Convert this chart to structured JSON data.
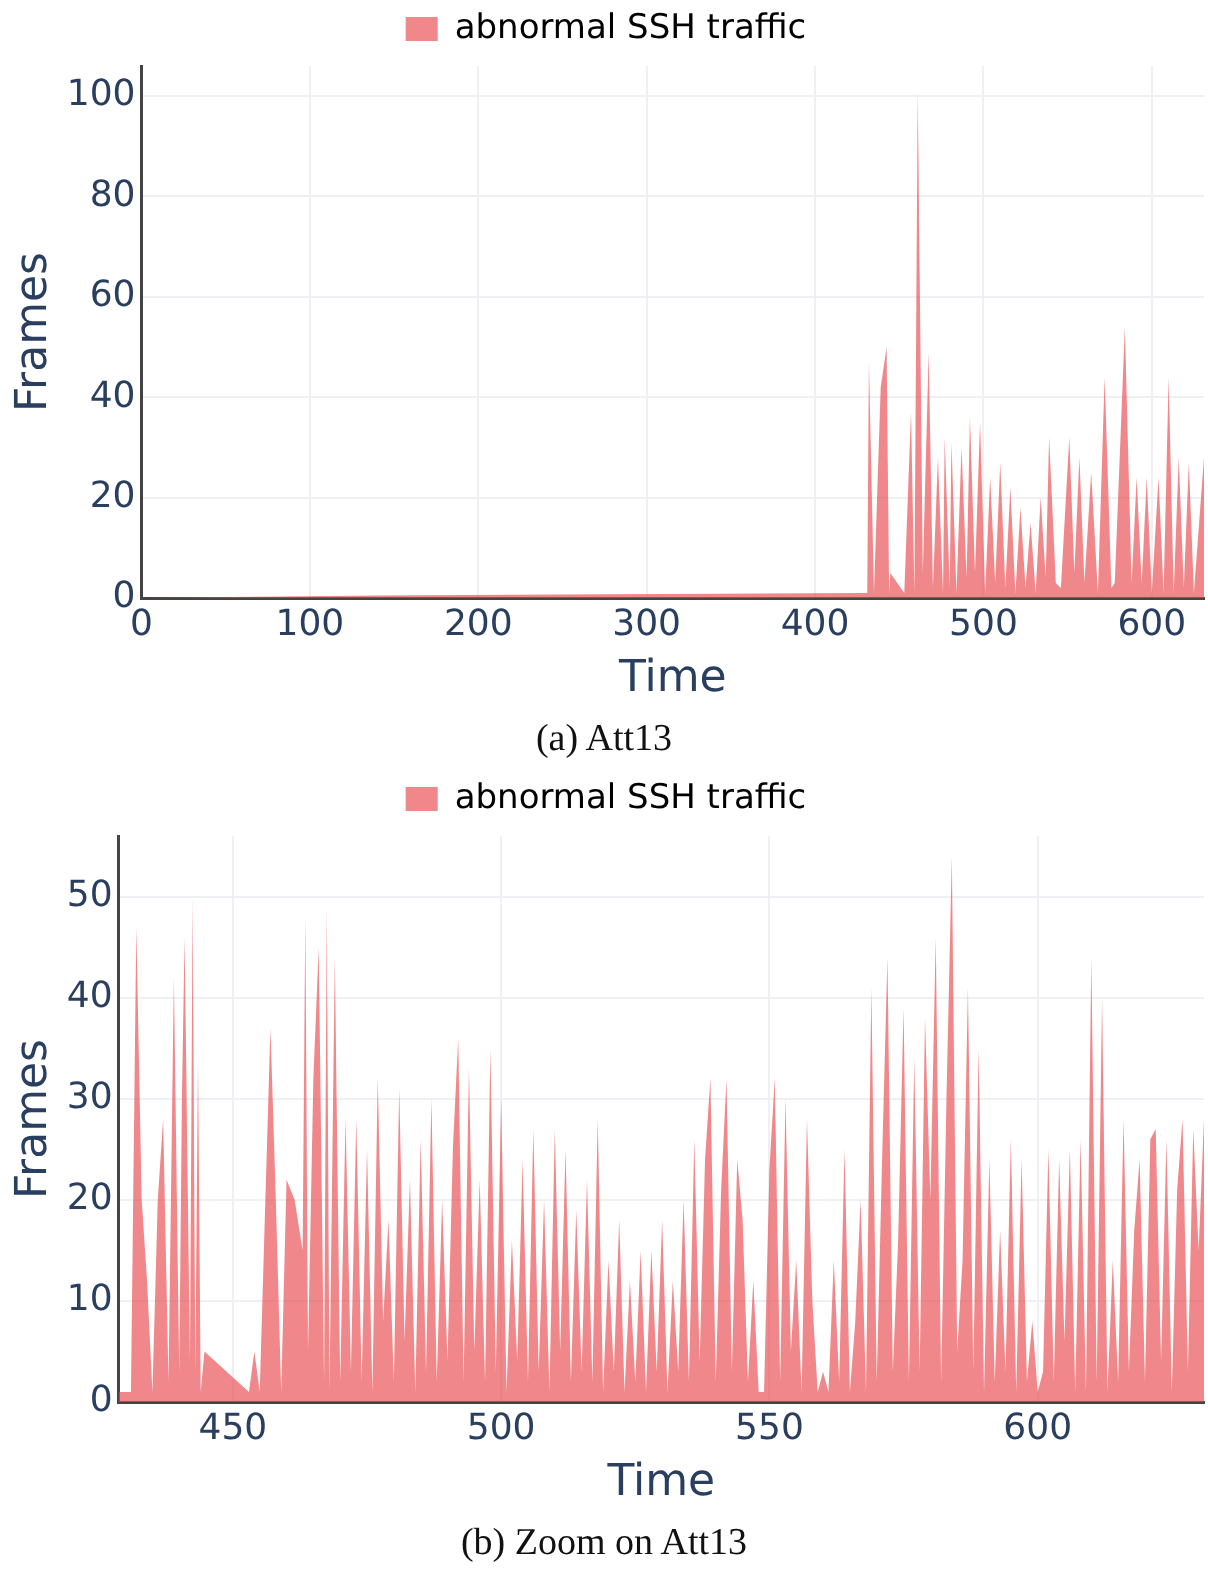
{
  "chart_data": [
    {
      "type": "area",
      "xlabel": "Time",
      "ylabel": "Frames",
      "legend": "top",
      "grid": true,
      "xlim": [
        0,
        631
      ],
      "xticks": [
        0,
        100,
        200,
        300,
        400,
        500,
        600
      ],
      "ylim": [
        0,
        106
      ],
      "yticks": [
        0,
        20,
        40,
        60,
        80,
        100
      ],
      "annotations": [
        "(a) Att13"
      ],
      "series": [
        {
          "name": "abnormal SSH traffic",
          "color": "#e8474c",
          "x": [
            0,
            140,
            428.7,
            431,
            432,
            435,
            439,
            442.5,
            444,
            444.7,
            453,
            457,
            459,
            461,
            464,
            467.5,
            470,
            473,
            476,
            477,
            480,
            481,
            484,
            487,
            490,
            492,
            495,
            498,
            501,
            504,
            507,
            510,
            513,
            516,
            519,
            522,
            525,
            528,
            531,
            534,
            537,
            539,
            543,
            546,
            551,
            554,
            557,
            560,
            564,
            568,
            572,
            576,
            578,
            584,
            588,
            591,
            594,
            597,
            600,
            604,
            607,
            610,
            613,
            616,
            619,
            622,
            625,
            631
          ],
          "values": [
            0,
            0.5,
            1,
            1,
            47,
            1,
            42,
            50,
            1,
            5,
            1,
            37,
            1,
            101,
            5,
            49,
            2,
            28,
            1,
            32,
            2,
            31,
            1,
            30,
            4,
            36,
            5,
            35,
            1,
            24,
            3,
            27,
            2,
            22,
            1,
            18,
            2,
            15,
            1,
            20,
            4,
            32,
            3,
            2,
            32,
            5,
            28,
            3,
            25,
            1,
            44,
            2,
            3,
            54,
            3,
            24,
            3,
            24,
            1,
            24,
            1,
            44,
            1,
            28,
            2,
            27,
            1,
            28
          ]
        }
      ]
    },
    {
      "type": "area",
      "xlabel": "Time",
      "ylabel": "Frames",
      "legend": "top",
      "grid": true,
      "xlim": [
        428.7,
        631
      ],
      "xticks": [
        450,
        500,
        550,
        600
      ],
      "ylim": [
        0,
        56
      ],
      "yticks": [
        0,
        10,
        20,
        30,
        40,
        50
      ],
      "annotations": [
        "(b) Zoom on Att13"
      ],
      "series": [
        {
          "name": "abnormal SSH traffic",
          "color": "#e8474c",
          "x": [
            428.7,
            431,
            432,
            433,
            434,
            435,
            436,
            437,
            438,
            439,
            440,
            440.5,
            441,
            442,
            442.5,
            443,
            443.5,
            444,
            444.7,
            453,
            454,
            455,
            457,
            458,
            459,
            460,
            461,
            461.5,
            462,
            463,
            463.5,
            464,
            465,
            466,
            467,
            467.5,
            468,
            469,
            470,
            471,
            472,
            473,
            474,
            475,
            476,
            477,
            478,
            479,
            480,
            481,
            482,
            483,
            484,
            485,
            486,
            487,
            488,
            489,
            490,
            491,
            492,
            493,
            494,
            495,
            496,
            497,
            498,
            499,
            500,
            501,
            502,
            503,
            504,
            505,
            506,
            507,
            508,
            509,
            510,
            511,
            512,
            513,
            514,
            515,
            516,
            517,
            518,
            519,
            520,
            521,
            522,
            523,
            524,
            525,
            526,
            527,
            528,
            529,
            530,
            531,
            532,
            533,
            534,
            535,
            536,
            537,
            538,
            539,
            540,
            541,
            542,
            543,
            544,
            545,
            546,
            547,
            548,
            549,
            550,
            551,
            552,
            553,
            554,
            555,
            556,
            557,
            558,
            559,
            560,
            561,
            562,
            563,
            564,
            565,
            566,
            567,
            568,
            569,
            570,
            571,
            572,
            573,
            574,
            575,
            576,
            577,
            578,
            579,
            580,
            581,
            582,
            583,
            584,
            585,
            586,
            587,
            588,
            589,
            590,
            591,
            592,
            593,
            594,
            595,
            596,
            597,
            598,
            599,
            600,
            601,
            602,
            603,
            604,
            605,
            606,
            607,
            608,
            609,
            610,
            611,
            612,
            613,
            614,
            615,
            616,
            617,
            618,
            619,
            620,
            621,
            622,
            623,
            624,
            625,
            626,
            627,
            628,
            629,
            630,
            631
          ],
          "values": [
            1,
            1,
            47,
            20,
            12,
            1,
            20,
            28,
            2,
            42,
            3,
            30,
            46,
            4,
            50,
            3,
            34,
            1,
            5,
            1,
            5,
            1,
            37,
            20,
            1,
            22,
            null,
            20,
            null,
            15,
            48,
            5,
            32,
            45,
            2,
            49,
            1,
            44,
            2,
            28,
            3,
            28,
            2,
            25,
            1,
            32,
            8,
            18,
            2,
            31,
            6,
            22,
            1,
            26,
            3,
            30,
            2,
            20,
            4,
            25,
            36,
            2,
            33,
            5,
            22,
            2,
            35,
            3,
            30,
            1,
            16,
            4,
            24,
            2,
            27,
            3,
            20,
            1,
            27,
            5,
            25,
            2,
            19,
            3,
            22,
            2,
            28,
            1,
            14,
            3,
            18,
            1,
            12,
            2,
            15,
            1,
            15,
            3,
            18,
            1,
            12,
            3,
            20,
            2,
            26,
            4,
            24,
            32,
            2,
            21,
            32,
            3,
            24,
            18,
            2,
            12,
            1,
            1,
            23,
            32,
            2,
            30,
            5,
            14,
            1,
            28,
            10,
            1,
            3,
            1,
            14,
            2,
            25,
            1,
            8,
            20,
            1,
            41,
            2,
            24,
            44,
            3,
            16,
            39,
            2,
            34,
            3,
            38,
            20,
            46,
            2,
            30,
            54,
            5,
            14,
            41,
            3,
            35,
            1,
            24,
            2,
            17,
            3,
            26,
            1,
            24,
            2,
            8,
            1,
            3,
            25,
            2,
            24,
            6,
            25,
            1,
            26,
            1,
            44,
            2,
            40,
            1,
            14,
            2,
            28,
            3,
            17,
            24,
            2,
            26,
            27,
            4,
            26,
            1,
            21,
            28,
            3,
            27,
            15,
            28
          ]
        }
      ]
    }
  ]
}
